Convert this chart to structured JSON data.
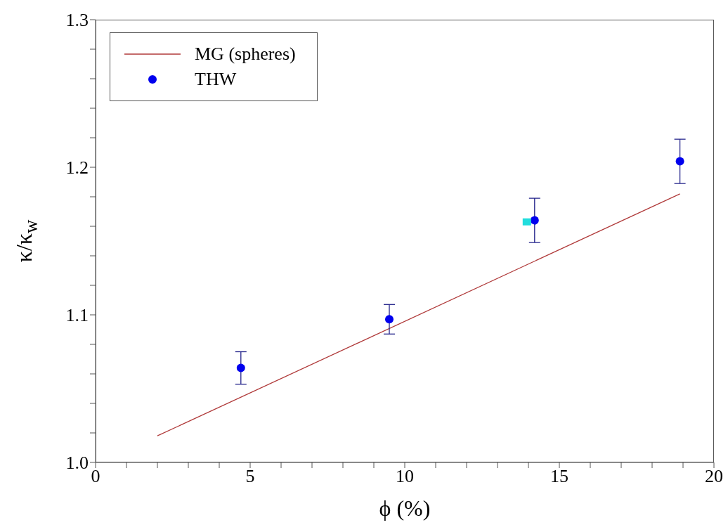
{
  "chart_data": {
    "type": "scatter",
    "xlabel": "ϕ (%)",
    "ylabel": "κ/κ$_{w}$",
    "xlim": [
      0,
      20
    ],
    "ylim": [
      1.0,
      1.3
    ],
    "xticks": [
      0,
      {
        "value": 1,
        "label": null
      },
      {
        "value": 2,
        "label": null
      },
      {
        "value": 3,
        "label": null
      },
      {
        "value": 4,
        "label": null
      },
      5,
      {
        "value": 6,
        "label": null
      },
      {
        "value": 7,
        "label": null
      },
      {
        "value": 8,
        "label": null
      },
      {
        "value": 9,
        "label": null
      },
      10,
      {
        "value": 11,
        "label": null
      },
      {
        "value": 12,
        "label": null
      },
      {
        "value": 13,
        "label": null
      },
      {
        "value": 14,
        "label": null
      },
      15,
      {
        "value": 16,
        "label": null
      },
      {
        "value": 17,
        "label": null
      },
      {
        "value": 18,
        "label": null
      },
      {
        "value": 19,
        "label": null
      },
      20
    ],
    "yticks": [
      {
        "value": 1.0,
        "label": "1.0"
      },
      {
        "value": 1.02,
        "label": null
      },
      {
        "value": 1.04,
        "label": null
      },
      {
        "value": 1.06,
        "label": null
      },
      {
        "value": 1.08,
        "label": null
      },
      1.1,
      {
        "value": 1.12,
        "label": null
      },
      {
        "value": 1.14,
        "label": null
      },
      {
        "value": 1.16,
        "label": null
      },
      {
        "value": 1.18,
        "label": null
      },
      1.2,
      {
        "value": 1.22,
        "label": null
      },
      {
        "value": 1.24,
        "label": null
      },
      {
        "value": 1.26,
        "label": null
      },
      {
        "value": 1.28,
        "label": null
      },
      1.3
    ],
    "grid": false,
    "legend": "top left",
    "series": [
      {
        "name": "MG (spheres)",
        "type": "line",
        "color": "#b03a3a",
        "x": [
          2,
          18.9
        ],
        "values": [
          1.018,
          1.182
        ],
        "marker": "none"
      },
      {
        "name": "THW",
        "color": "#0000ee",
        "x": [
          4.7,
          9.5,
          14.2,
          18.9
        ],
        "values": [
          1.064,
          1.097,
          1.164,
          1.204
        ],
        "errors": [
          0.011,
          0.01,
          0.015,
          0.015
        ],
        "marker": "circle"
      },
      {
        "color": "#22dddd",
        "x": [
          13.95
        ],
        "values": [
          1.163
        ],
        "marker": "square"
      }
    ]
  }
}
